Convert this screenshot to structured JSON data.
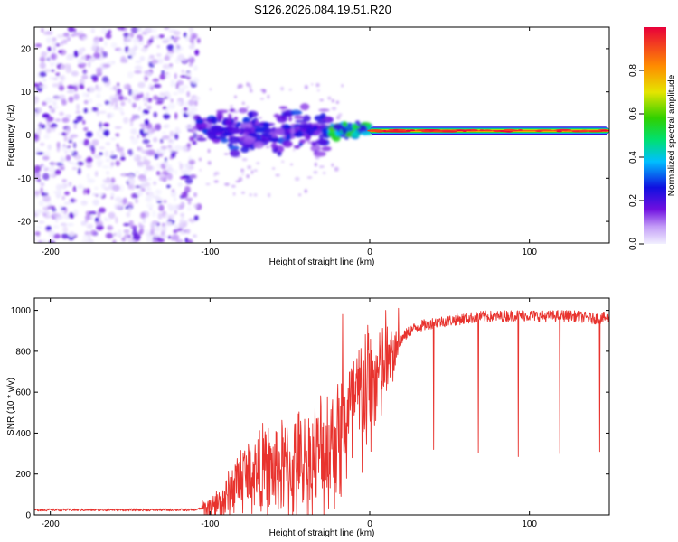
{
  "title": "S126.2026.084.19.51.R20",
  "chart_data": [
    {
      "type": "heatmap",
      "name": "spectrogram",
      "xlabel": "Height of straight line (km)",
      "ylabel": "Frequency (Hz)",
      "xlim": [
        -210,
        150
      ],
      "ylim": [
        -25,
        25
      ],
      "xticks": [
        -200,
        -100,
        0,
        100
      ],
      "yticks": [
        -20,
        -10,
        0,
        10,
        20
      ],
      "colorbar": {
        "label": "Normalized spectral amplitude",
        "range": [
          0.0,
          1.0
        ],
        "ticks": [
          0.0,
          0.2,
          0.4,
          0.6,
          0.8
        ]
      },
      "regions": [
        {
          "x_from": -210,
          "x_to": -107,
          "freq_from": -25,
          "freq_to": 25,
          "level": 0.05,
          "description": "noise"
        },
        {
          "x_from": -107,
          "x_to": -25,
          "center_freq": 1,
          "freq_spread": 6,
          "level": 0.25
        },
        {
          "x_from": -25,
          "x_to": 0,
          "center_freq": 1,
          "freq_spread": 2,
          "level": 0.5
        },
        {
          "x_from": 0,
          "x_to": 150,
          "center_freq": 1,
          "freq_spread": 1.5,
          "level": 0.85
        }
      ]
    },
    {
      "type": "line",
      "name": "snr",
      "xlabel": "Height of straight line (km)",
      "ylabel": "SNR (10 * v/v)",
      "xlim": [
        -210,
        150
      ],
      "ylim": [
        0,
        1060
      ],
      "xticks": [
        -200,
        -100,
        0,
        100
      ],
      "yticks": [
        0,
        200,
        400,
        600,
        800,
        1000
      ],
      "color": "#e8332e",
      "series": [
        {
          "name": "SNR",
          "x": [
            -210,
            -150,
            -110,
            -100,
            -90,
            -85,
            -80,
            -75,
            -70,
            -65,
            -60,
            -55,
            -50,
            -45,
            -40,
            -35,
            -30,
            -25,
            -20,
            -15,
            -10,
            -5,
            0,
            5,
            10,
            15,
            20,
            25,
            30,
            40,
            50,
            60,
            70,
            80,
            90,
            100,
            110,
            120,
            130,
            140,
            150
          ],
          "y": [
            25,
            25,
            25,
            40,
            90,
            160,
            210,
            220,
            230,
            240,
            230,
            250,
            240,
            260,
            270,
            300,
            330,
            380,
            420,
            480,
            540,
            600,
            650,
            700,
            740,
            800,
            860,
            900,
            920,
            940,
            950,
            960,
            970,
            970,
            975,
            975,
            970,
            975,
            970,
            960,
            965
          ],
          "spikes": [
            {
              "x": -17,
              "y": 980
            },
            {
              "x": 10,
              "y": 1000
            },
            {
              "x": 18,
              "y": 1010
            },
            {
              "x": 40,
              "y": 320
            },
            {
              "x": 68,
              "y": 305
            },
            {
              "x": 93,
              "y": 285
            },
            {
              "x": 119,
              "y": 300
            },
            {
              "x": 144,
              "y": 310
            }
          ]
        }
      ]
    }
  ]
}
